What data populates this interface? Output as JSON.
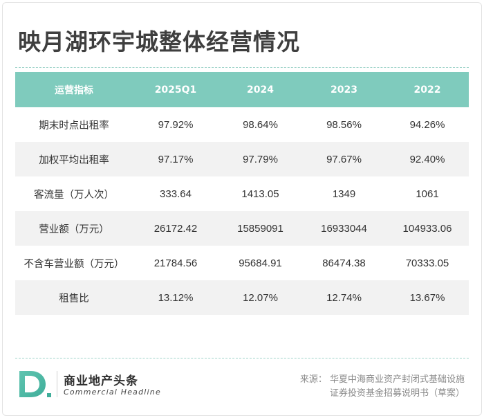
{
  "title": "映月湖环宇城整体经营情况",
  "table": {
    "headers": [
      "运营指标",
      "2025Q1",
      "2024",
      "2023",
      "2022"
    ],
    "rows": [
      [
        "期末时点出租率",
        "97.92%",
        "98.64%",
        "98.56%",
        "94.26%"
      ],
      [
        "加权平均出租率",
        "97.17%",
        "97.79%",
        "97.67%",
        "92.40%"
      ],
      [
        "客流量（万人次）",
        "333.64",
        "1413.05",
        "1349",
        "1061"
      ],
      [
        "营业额（万元）",
        "26172.42",
        "15859091",
        "16933044",
        "104933.06"
      ],
      [
        "不含车营业额（万元）",
        "21784.56",
        "95684.91",
        "86474.38",
        "70333.05"
      ],
      [
        "租售比",
        "13.12%",
        "12.07%",
        "12.74%",
        "13.67%"
      ]
    ]
  },
  "brand": {
    "name_cn": "商业地产头条",
    "name_en": "Commercial Headline",
    "logo_letter": "D",
    "logo_icon": "d-logo-icon"
  },
  "source": {
    "line1": "来源：   华夏中海商业资产封闭式基础设施",
    "line2": "证券投资基金招募说明书（草案）"
  },
  "colors": {
    "header_bg": "#7fcbbd",
    "accent": "#5fc4b0",
    "stripe": "#f2f2f2"
  }
}
